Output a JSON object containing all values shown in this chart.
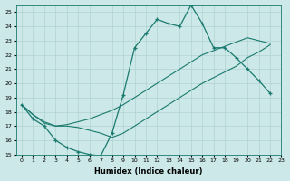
{
  "xlabel": "Humidex (Indice chaleur)",
  "ylabel": "",
  "xlim": [
    -0.5,
    23
  ],
  "ylim": [
    15,
    25.5
  ],
  "xticks": [
    0,
    1,
    2,
    3,
    4,
    5,
    6,
    7,
    8,
    9,
    10,
    11,
    12,
    13,
    14,
    15,
    16,
    17,
    18,
    19,
    20,
    21,
    22,
    23
  ],
  "yticks": [
    15,
    16,
    17,
    18,
    19,
    20,
    21,
    22,
    23,
    24,
    25
  ],
  "bg_color": "#cce8e8",
  "line_color": "#1a7a6e",
  "line1_x": [
    0,
    1,
    2,
    3,
    4,
    5,
    6,
    7,
    8,
    9,
    10,
    11,
    12,
    13,
    14,
    15,
    16,
    17,
    18,
    19,
    20,
    21,
    22
  ],
  "line1_y": [
    18.5,
    17.5,
    17.0,
    16.0,
    15.5,
    15.2,
    15.0,
    14.9,
    16.5,
    19.2,
    22.5,
    23.5,
    24.5,
    24.2,
    24.0,
    25.5,
    24.2,
    22.5,
    22.5,
    21.8,
    21.0,
    20.2,
    19.3
  ],
  "line2_x": [
    0,
    1,
    2,
    3,
    4,
    5,
    6,
    7,
    8,
    9,
    10,
    11,
    12,
    13,
    14,
    15,
    16,
    17,
    18,
    19,
    20,
    21,
    22
  ],
  "line2_y": [
    18.5,
    17.8,
    17.3,
    17.0,
    17.1,
    17.3,
    17.5,
    17.8,
    18.1,
    18.5,
    19.0,
    19.5,
    20.0,
    20.5,
    21.0,
    21.5,
    22.0,
    22.3,
    22.6,
    22.9,
    23.2,
    23.0,
    22.8
  ],
  "line3_x": [
    0,
    1,
    2,
    3,
    4,
    5,
    6,
    7,
    8,
    9,
    10,
    11,
    12,
    13,
    14,
    15,
    16,
    17,
    18,
    19,
    20,
    21,
    22
  ],
  "line3_y": [
    18.5,
    17.8,
    17.2,
    17.0,
    17.0,
    16.9,
    16.7,
    16.5,
    16.2,
    16.5,
    17.0,
    17.5,
    18.0,
    18.5,
    19.0,
    19.5,
    20.0,
    20.4,
    20.8,
    21.2,
    21.8,
    22.2,
    22.7
  ]
}
